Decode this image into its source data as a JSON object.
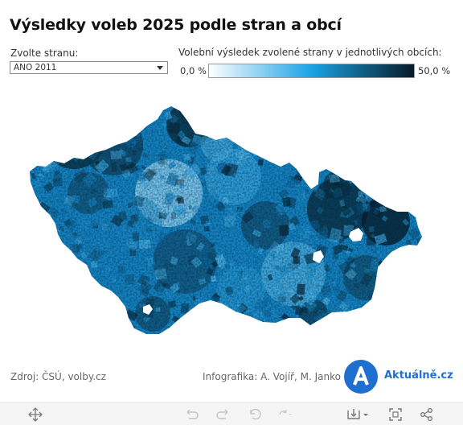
{
  "header": {
    "title": "Výsledky voleb 2025 podle stran a obcí"
  },
  "filter": {
    "label": "Zvolte stranu:",
    "selected": "ANO 2011"
  },
  "legend": {
    "title": "Volební výsledek zvolené strany v jednotlivých obcích:",
    "min_label": "0,0 %",
    "max_label": "50,0 %",
    "color_low": "#ffffff",
    "color_mid": "#1aa3e6",
    "color_high": "#061a26"
  },
  "footer": {
    "source": "Zdroj: ČSÚ, volby.cz",
    "credit": "Infografika: A. Vojíř, M. Janko",
    "brand": "Aktuálně.cz",
    "brand_color": "#1f6fd1"
  },
  "toolbar": {
    "icons": [
      "pan-icon",
      "undo-icon",
      "redo-icon",
      "revert-icon",
      "refresh-icon",
      "pause-icon",
      "download-icon",
      "fullscreen-icon",
      "share-icon"
    ]
  }
}
